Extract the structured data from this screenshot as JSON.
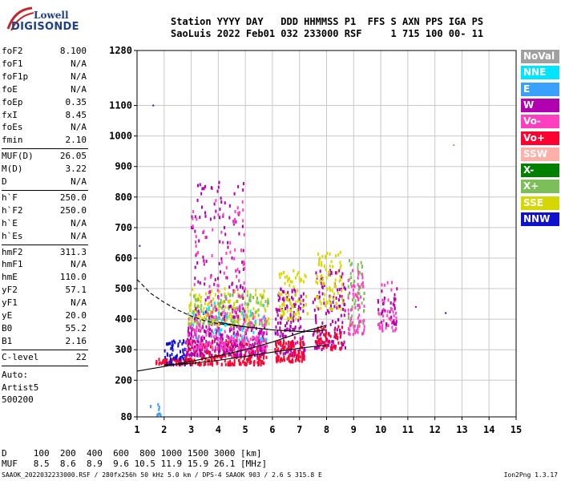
{
  "logo": {
    "line1": "Lowell",
    "line2": "DIGISONDE"
  },
  "header": {
    "row1": "Station YYYY DAY   DDD HHMMSS P1  FFS S AXN PPS IGA PS",
    "row2": "SaoLuis 2022 Feb01 032 233000 RSF     1 715 100 00- 11"
  },
  "params": [
    {
      "k": "foF2",
      "v": "8.100"
    },
    {
      "k": "foF1",
      "v": "N/A"
    },
    {
      "k": "foF1p",
      "v": "N/A"
    },
    {
      "k": "foE",
      "v": "N/A"
    },
    {
      "k": "foEp",
      "v": "0.35"
    },
    {
      "k": "fxI",
      "v": "8.45"
    },
    {
      "k": "foEs",
      "v": "N/A"
    },
    {
      "k": "fmin",
      "v": "2.10"
    },
    {
      "k": "MUF(D)",
      "v": "26.05"
    },
    {
      "k": "M(D)",
      "v": "3.22"
    },
    {
      "k": "D",
      "v": "N/A"
    },
    {
      "k": "h`F",
      "v": "250.0"
    },
    {
      "k": "h`F2",
      "v": "250.0"
    },
    {
      "k": "h`E",
      "v": "N/A"
    },
    {
      "k": "h`Es",
      "v": "N/A"
    },
    {
      "k": "hmF2",
      "v": "311.3"
    },
    {
      "k": "hmF1",
      "v": "N/A"
    },
    {
      "k": "hmE",
      "v": "110.0"
    },
    {
      "k": "yF2",
      "v": "57.1"
    },
    {
      "k": "yF1",
      "v": "N/A"
    },
    {
      "k": "yE",
      "v": "20.0"
    },
    {
      "k": "B0",
      "v": "55.2"
    },
    {
      "k": "B1",
      "v": "2.16"
    },
    {
      "k": "C-level",
      "v": "22"
    }
  ],
  "auto": {
    "line1": "Auto:",
    "line2": "Artist5",
    "line3": "500200"
  },
  "legend": [
    {
      "label": "NoVal",
      "color": "#a0a0a0"
    },
    {
      "label": "NNE",
      "color": "#00e5ff"
    },
    {
      "label": "E",
      "color": "#3aa0ff"
    },
    {
      "label": "W",
      "color": "#b000b0"
    },
    {
      "label": "Vo-",
      "color": "#ff3fbf"
    },
    {
      "label": "Vo+",
      "color": "#ff0030"
    },
    {
      "label": "SSW",
      "color": "#ffb0a8"
    },
    {
      "label": "X-",
      "color": "#008000"
    },
    {
      "label": "X+",
      "color": "#7cbf5a"
    },
    {
      "label": "SSE",
      "color": "#d6d600"
    },
    {
      "label": "NNW",
      "color": "#1010d0"
    }
  ],
  "bottom": {
    "d_row": "D     100  200  400  600  800 1000 1500 3000 [km]",
    "muf_row": "MUF   8.5  8.6  8.9  9.6 10.5 11.9 15.9 26.1 [MHz]"
  },
  "footer": {
    "left": "SAAOK_2022032233000.RSF / 280fx256h 50 kHz 5.0 km / DPS-4 SAAOK 903 / 2.6 S 315.8 E",
    "right": "Ion2Png 1.3.17"
  },
  "chart_data": {
    "type": "scatter",
    "xlim": [
      1,
      15
    ],
    "ylim": [
      80,
      1280
    ],
    "x_ticks": [
      1,
      2,
      3,
      4,
      5,
      6,
      7,
      8,
      9,
      10,
      11,
      12,
      13,
      14,
      15
    ],
    "y_ticks": [
      80,
      200,
      300,
      400,
      500,
      600,
      700,
      800,
      900,
      1000,
      1100,
      1280
    ],
    "grid": true,
    "clusters": [
      {
        "x": [
          1.4,
          2.0
        ],
        "y": [
          80,
          120
        ],
        "color": "#3aa0ff",
        "n": 8
      },
      {
        "x": [
          1.7,
          3.0
        ],
        "y": [
          250,
          270
        ],
        "color": "#ff0030",
        "n": 60
      },
      {
        "x": [
          2.0,
          3.0
        ],
        "y": [
          250,
          330
        ],
        "color": "#1010d0",
        "n": 60
      },
      {
        "x": [
          2.8,
          5.8
        ],
        "y": [
          250,
          330
        ],
        "color": "#ff0030",
        "n": 260
      },
      {
        "x": [
          2.8,
          5.8
        ],
        "y": [
          280,
          380
        ],
        "color": "#b000b0",
        "n": 260
      },
      {
        "x": [
          2.8,
          5.8
        ],
        "y": [
          300,
          420
        ],
        "color": "#ff3fbf",
        "n": 200
      },
      {
        "x": [
          2.9,
          5.9
        ],
        "y": [
          380,
          500
        ],
        "color": "#d6d600",
        "n": 150
      },
      {
        "x": [
          2.9,
          5.9
        ],
        "y": [
          380,
          480
        ],
        "color": "#7cbf5a",
        "n": 100
      },
      {
        "x": [
          3.0,
          5.0
        ],
        "y": [
          400,
          850
        ],
        "color": "#b000b0",
        "n": 120
      },
      {
        "x": [
          3.0,
          5.0
        ],
        "y": [
          400,
          800
        ],
        "color": "#ff3fbf",
        "n": 80
      },
      {
        "x": [
          3.0,
          5.8
        ],
        "y": [
          330,
          460
        ],
        "color": "#00e5ff",
        "n": 40
      },
      {
        "x": [
          6.1,
          7.2
        ],
        "y": [
          280,
          500
        ],
        "color": "#b000b0",
        "n": 140
      },
      {
        "x": [
          6.1,
          7.2
        ],
        "y": [
          260,
          330
        ],
        "color": "#ff0030",
        "n": 100
      },
      {
        "x": [
          6.2,
          7.3
        ],
        "y": [
          400,
          560
        ],
        "color": "#d6d600",
        "n": 70
      },
      {
        "x": [
          7.5,
          8.7
        ],
        "y": [
          300,
          560
        ],
        "color": "#b000b0",
        "n": 130
      },
      {
        "x": [
          7.6,
          8.6
        ],
        "y": [
          430,
          620
        ],
        "color": "#d6d600",
        "n": 80
      },
      {
        "x": [
          7.6,
          8.6
        ],
        "y": [
          300,
          380
        ],
        "color": "#ff0030",
        "n": 60
      },
      {
        "x": [
          8.8,
          9.4
        ],
        "y": [
          350,
          560
        ],
        "color": "#ff3fbf",
        "n": 80
      },
      {
        "x": [
          8.8,
          9.4
        ],
        "y": [
          380,
          600
        ],
        "color": "#7cbf5a",
        "n": 40
      },
      {
        "x": [
          9.9,
          10.6
        ],
        "y": [
          360,
          520
        ],
        "color": "#ff3fbf",
        "n": 50
      },
      {
        "x": [
          9.9,
          10.6
        ],
        "y": [
          380,
          510
        ],
        "color": "#b000b0",
        "n": 30
      }
    ],
    "outliers": [
      {
        "x": 1.6,
        "y": 1100,
        "color": "#1010d0"
      },
      {
        "x": 12.7,
        "y": 970,
        "color": "#7cbf5a"
      },
      {
        "x": 1.1,
        "y": 640,
        "color": "#1010d0"
      },
      {
        "x": 11.3,
        "y": 440,
        "color": "#b000b0"
      },
      {
        "x": 12.4,
        "y": 420,
        "color": "#1010d0"
      }
    ],
    "curves": [
      {
        "name": "",
        "style": "solid",
        "x": [
          1,
          2,
          3,
          4,
          5,
          6,
          7,
          8
        ],
        "y": [
          230,
          245,
          262,
          280,
          300,
          325,
          355,
          380
        ]
      },
      {
        "name": "",
        "style": "solid",
        "x": [
          2,
          3,
          4,
          5,
          6,
          7,
          8
        ],
        "y": [
          250,
          255,
          265,
          278,
          292,
          305,
          315
        ]
      },
      {
        "name": "",
        "style": "dashed",
        "x": [
          1,
          1.5,
          2,
          2.5,
          3,
          3.5,
          4,
          5,
          6,
          7
        ],
        "y": [
          530,
          485,
          455,
          430,
          410,
          395,
          385,
          375,
          365,
          360
        ]
      },
      {
        "name": "",
        "style": "solid",
        "x": [
          4,
          5,
          6,
          7,
          7.5,
          8
        ],
        "y": [
          390,
          375,
          365,
          360,
          360,
          365
        ]
      }
    ]
  }
}
